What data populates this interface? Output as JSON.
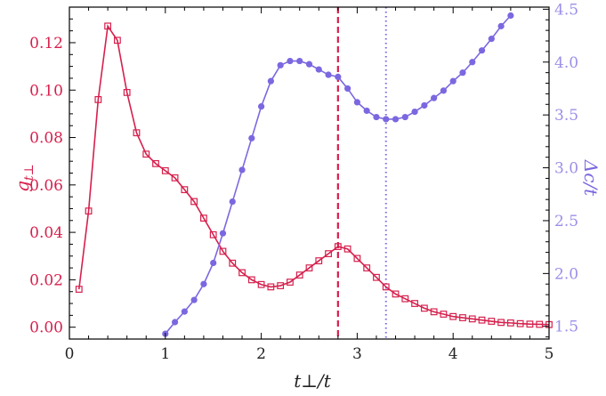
{
  "chart_data": {
    "type": "line",
    "xlabel": "t⊥/t",
    "ylabel": "g",
    "ylabel_sub": "t⊥",
    "y2label": "Δc/t",
    "xlim": [
      0,
      5
    ],
    "ylim": [
      -0.005,
      0.135
    ],
    "y2lim": [
      1.38,
      4.52
    ],
    "x_ticks": [
      0,
      1,
      2,
      3,
      4,
      5
    ],
    "y_ticks": [
      0.0,
      0.02,
      0.04,
      0.06,
      0.08,
      0.1,
      0.12
    ],
    "y_tick_labels": [
      "0.00",
      "0.02",
      "0.04",
      "0.06",
      "0.08",
      "0.10",
      "0.12"
    ],
    "y2_ticks": [
      1.5,
      2.0,
      2.5,
      3.0,
      3.5,
      4.0,
      4.5
    ],
    "y2_tick_labels": [
      "1.5",
      "2.0",
      "2.5",
      "3.0",
      "3.5",
      "4.0",
      "4.5"
    ],
    "colors": {
      "left": "#d6204d",
      "right": "#7b68e0",
      "right_tick": "#9a8fe8"
    },
    "vlines": [
      {
        "x": 2.8,
        "style": "dashed",
        "color": "#d6204d"
      },
      {
        "x": 3.3,
        "style": "dotted",
        "color": "#7b68e0"
      }
    ],
    "series": [
      {
        "axis": "left",
        "marker": "open-square",
        "color": "#d6204d",
        "x": [
          0.1,
          0.2,
          0.3,
          0.4,
          0.5,
          0.6,
          0.7,
          0.8,
          0.9,
          1.0,
          1.1,
          1.2,
          1.3,
          1.4,
          1.5,
          1.6,
          1.7,
          1.8,
          1.9,
          2.0,
          2.1,
          2.2,
          2.3,
          2.4,
          2.5,
          2.6,
          2.7,
          2.8,
          2.9,
          3.0,
          3.1,
          3.2,
          3.3,
          3.4,
          3.5,
          3.6,
          3.7,
          3.8,
          3.9,
          4.0,
          4.1,
          4.2,
          4.3,
          4.4,
          4.5,
          4.6,
          4.7,
          4.8,
          4.9,
          5.0
        ],
        "y": [
          0.016,
          0.049,
          0.096,
          0.127,
          0.121,
          0.099,
          0.082,
          0.073,
          0.069,
          0.066,
          0.063,
          0.058,
          0.053,
          0.046,
          0.039,
          0.032,
          0.027,
          0.023,
          0.02,
          0.018,
          0.017,
          0.0175,
          0.019,
          0.022,
          0.025,
          0.028,
          0.031,
          0.034,
          0.033,
          0.029,
          0.025,
          0.021,
          0.017,
          0.014,
          0.012,
          0.01,
          0.008,
          0.0065,
          0.0055,
          0.0045,
          0.004,
          0.0035,
          0.003,
          0.0025,
          0.002,
          0.0018,
          0.0015,
          0.0013,
          0.0012,
          0.0011
        ]
      },
      {
        "axis": "right",
        "marker": "filled-circle",
        "color": "#7b68e0",
        "x": [
          1.0,
          1.1,
          1.2,
          1.3,
          1.4,
          1.5,
          1.6,
          1.7,
          1.8,
          1.9,
          2.0,
          2.1,
          2.2,
          2.3,
          2.4,
          2.5,
          2.6,
          2.7,
          2.8,
          2.9,
          3.0,
          3.1,
          3.2,
          3.3,
          3.4,
          3.5,
          3.6,
          3.7,
          3.8,
          3.9,
          4.0,
          4.1,
          4.2,
          4.3,
          4.4,
          4.5,
          4.6
        ],
        "y": [
          1.43,
          1.54,
          1.64,
          1.75,
          1.9,
          2.1,
          2.38,
          2.68,
          2.98,
          3.28,
          3.58,
          3.82,
          3.97,
          4.01,
          4.01,
          3.98,
          3.93,
          3.88,
          3.86,
          3.75,
          3.62,
          3.54,
          3.48,
          3.46,
          3.46,
          3.48,
          3.53,
          3.59,
          3.66,
          3.73,
          3.82,
          3.9,
          4.0,
          4.11,
          4.22,
          4.34,
          4.44
        ]
      }
    ]
  }
}
